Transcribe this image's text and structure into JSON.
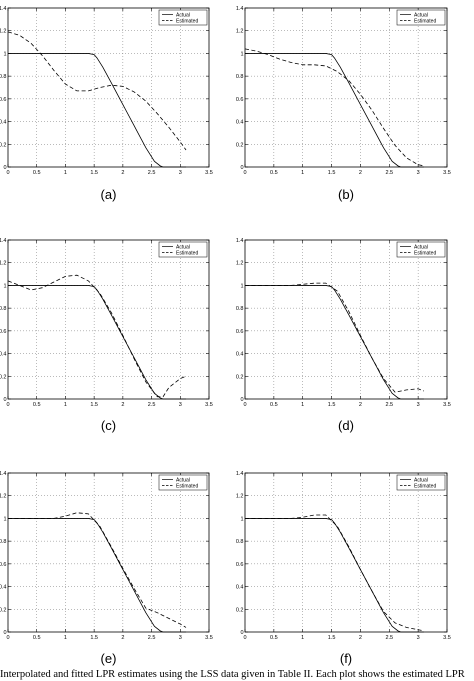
{
  "caption": "Interpolated and fitted LPR estimates using the LSS data given in Table II. Each plot shows the estimated LPR",
  "chart_data": [
    {
      "type": "line",
      "label": "(a)",
      "xlim": [
        0,
        3.5
      ],
      "ylim": [
        0,
        1.4
      ],
      "xticks": [
        "0",
        "0.5",
        "1",
        "1.5",
        "2",
        "2.5",
        "3",
        "3.5"
      ],
      "yticks": [
        "0",
        "0.2",
        "0.4",
        "0.6",
        "0.8",
        "1",
        "1.2",
        "1.4"
      ],
      "grid": true,
      "legend_position": "top-right",
      "series": [
        {
          "name": "Actual",
          "style": "solid",
          "x": [
            0,
            0.5,
            1.0,
            1.4,
            1.5,
            1.55,
            1.65,
            1.8,
            2.0,
            2.2,
            2.4,
            2.55,
            2.65,
            2.7,
            3.0,
            3.1
          ],
          "y": [
            1.0,
            1.0,
            1.0,
            1.0,
            0.99,
            0.96,
            0.88,
            0.74,
            0.55,
            0.36,
            0.17,
            0.05,
            0.01,
            0.0,
            0.0,
            0.0
          ]
        },
        {
          "name": "Estimated",
          "style": "dashed",
          "x": [
            0,
            0.2,
            0.4,
            0.6,
            0.8,
            1.0,
            1.2,
            1.4,
            1.6,
            1.8,
            2.0,
            2.2,
            2.4,
            2.6,
            2.8,
            3.0,
            3.1
          ],
          "y": [
            1.19,
            1.16,
            1.09,
            0.98,
            0.85,
            0.73,
            0.67,
            0.67,
            0.7,
            0.72,
            0.71,
            0.66,
            0.58,
            0.47,
            0.35,
            0.22,
            0.15
          ]
        }
      ]
    },
    {
      "type": "line",
      "label": "(b)",
      "xlim": [
        0,
        3.5
      ],
      "ylim": [
        0,
        1.4
      ],
      "xticks": [
        "0",
        "0.5",
        "1",
        "1.5",
        "2",
        "2.5",
        "3",
        "3.5"
      ],
      "yticks": [
        "0",
        "0.2",
        "0.4",
        "0.6",
        "0.8",
        "1",
        "1.2",
        "1.4"
      ],
      "grid": true,
      "legend_position": "top-right",
      "series": [
        {
          "name": "Actual",
          "style": "solid",
          "x": [
            0,
            0.5,
            1.0,
            1.4,
            1.5,
            1.55,
            1.65,
            1.8,
            2.0,
            2.2,
            2.4,
            2.55,
            2.65,
            2.7,
            3.0,
            3.1
          ],
          "y": [
            1.0,
            1.0,
            1.0,
            1.0,
            0.99,
            0.96,
            0.88,
            0.74,
            0.55,
            0.36,
            0.17,
            0.05,
            0.01,
            0.0,
            0.0,
            0.0
          ]
        },
        {
          "name": "Estimated",
          "style": "dashed",
          "x": [
            0,
            0.2,
            0.4,
            0.6,
            0.8,
            1.0,
            1.2,
            1.4,
            1.6,
            1.8,
            2.0,
            2.2,
            2.4,
            2.6,
            2.8,
            3.0,
            3.1
          ],
          "y": [
            1.04,
            1.02,
            0.99,
            0.95,
            0.92,
            0.9,
            0.9,
            0.89,
            0.84,
            0.76,
            0.64,
            0.5,
            0.34,
            0.19,
            0.08,
            0.02,
            0.01
          ]
        }
      ]
    },
    {
      "type": "line",
      "label": "(c)",
      "xlim": [
        0,
        3.5
      ],
      "ylim": [
        0,
        1.4
      ],
      "xticks": [
        "0",
        "0.5",
        "1",
        "1.5",
        "2",
        "2.5",
        "3",
        "3.5"
      ],
      "yticks": [
        "0",
        "0.2",
        "0.4",
        "0.6",
        "0.8",
        "1",
        "1.2",
        "1.4"
      ],
      "grid": true,
      "legend_position": "top-right",
      "series": [
        {
          "name": "Actual",
          "style": "solid",
          "x": [
            0,
            0.5,
            1.0,
            1.4,
            1.5,
            1.55,
            1.65,
            1.8,
            2.0,
            2.2,
            2.4,
            2.55,
            2.65,
            2.7,
            3.0,
            3.1
          ],
          "y": [
            1.0,
            1.0,
            1.0,
            1.0,
            0.99,
            0.96,
            0.88,
            0.74,
            0.55,
            0.36,
            0.17,
            0.05,
            0.01,
            0.0,
            0.0,
            0.0
          ]
        },
        {
          "name": "Estimated",
          "style": "dashed",
          "x": [
            0,
            0.2,
            0.4,
            0.6,
            0.8,
            1.0,
            1.2,
            1.4,
            1.6,
            1.8,
            2.0,
            2.2,
            2.4,
            2.6,
            2.7,
            2.8,
            3.0,
            3.1
          ],
          "y": [
            1.04,
            1.0,
            0.96,
            0.98,
            1.03,
            1.08,
            1.09,
            1.04,
            0.93,
            0.76,
            0.56,
            0.35,
            0.15,
            0.02,
            0.02,
            0.1,
            0.18,
            0.2
          ]
        }
      ]
    },
    {
      "type": "line",
      "label": "(d)",
      "xlim": [
        0,
        3.5
      ],
      "ylim": [
        0,
        1.4
      ],
      "xticks": [
        "0",
        "0.5",
        "1",
        "1.5",
        "2",
        "2.5",
        "3",
        "3.5"
      ],
      "yticks": [
        "0",
        "0.2",
        "0.4",
        "0.6",
        "0.8",
        "1",
        "1.2",
        "1.4"
      ],
      "grid": true,
      "legend_position": "top-right",
      "series": [
        {
          "name": "Actual",
          "style": "solid",
          "x": [
            0,
            0.5,
            1.0,
            1.4,
            1.5,
            1.55,
            1.65,
            1.8,
            2.0,
            2.2,
            2.4,
            2.55,
            2.65,
            2.7,
            3.0,
            3.1
          ],
          "y": [
            1.0,
            1.0,
            1.0,
            1.0,
            0.99,
            0.96,
            0.88,
            0.74,
            0.55,
            0.36,
            0.17,
            0.05,
            0.01,
            0.0,
            0.0,
            0.0
          ]
        },
        {
          "name": "Estimated",
          "style": "dashed",
          "x": [
            0,
            0.4,
            0.8,
            1.2,
            1.4,
            1.6,
            1.8,
            2.0,
            2.2,
            2.4,
            2.6,
            2.8,
            3.0,
            3.1
          ],
          "y": [
            1.0,
            1.0,
            1.0,
            1.02,
            1.02,
            0.95,
            0.77,
            0.56,
            0.36,
            0.18,
            0.06,
            0.08,
            0.09,
            0.07
          ]
        }
      ]
    },
    {
      "type": "line",
      "label": "(e)",
      "xlim": [
        0,
        3.5
      ],
      "ylim": [
        0,
        1.4
      ],
      "xticks": [
        "0",
        "0.5",
        "1",
        "1.5",
        "2",
        "2.5",
        "3",
        "3.5"
      ],
      "yticks": [
        "0",
        "0.2",
        "0.4",
        "0.6",
        "0.8",
        "1",
        "1.2",
        "1.4"
      ],
      "grid": true,
      "legend_position": "top-right",
      "series": [
        {
          "name": "Actual",
          "style": "solid",
          "x": [
            0,
            0.5,
            1.0,
            1.4,
            1.5,
            1.55,
            1.65,
            1.8,
            2.0,
            2.2,
            2.4,
            2.55,
            2.65,
            2.7,
            3.0,
            3.1
          ],
          "y": [
            1.0,
            1.0,
            1.0,
            1.0,
            0.99,
            0.96,
            0.88,
            0.74,
            0.55,
            0.36,
            0.17,
            0.05,
            0.01,
            0.0,
            0.0,
            0.0
          ]
        },
        {
          "name": "Estimated",
          "style": "dashed",
          "x": [
            0,
            0.4,
            0.8,
            1.0,
            1.2,
            1.4,
            1.6,
            1.8,
            2.0,
            2.2,
            2.4,
            2.6,
            2.8,
            3.0,
            3.1
          ],
          "y": [
            1.0,
            1.0,
            1.0,
            1.02,
            1.05,
            1.04,
            0.93,
            0.75,
            0.56,
            0.38,
            0.21,
            0.17,
            0.12,
            0.07,
            0.04
          ]
        }
      ]
    },
    {
      "type": "line",
      "label": "(f)",
      "xlim": [
        0,
        3.5
      ],
      "ylim": [
        0,
        1.4
      ],
      "xticks": [
        "0",
        "0.5",
        "1",
        "1.5",
        "2",
        "2.5",
        "3",
        "3.5"
      ],
      "yticks": [
        "0",
        "0.2",
        "0.4",
        "0.6",
        "0.8",
        "1",
        "1.2",
        "1.4"
      ],
      "grid": true,
      "legend_position": "top-right",
      "series": [
        {
          "name": "Actual",
          "style": "solid",
          "x": [
            0,
            0.5,
            1.0,
            1.4,
            1.5,
            1.55,
            1.65,
            1.8,
            2.0,
            2.2,
            2.4,
            2.55,
            2.65,
            2.7,
            3.0,
            3.1
          ],
          "y": [
            1.0,
            1.0,
            1.0,
            1.0,
            0.99,
            0.96,
            0.88,
            0.74,
            0.55,
            0.36,
            0.17,
            0.05,
            0.01,
            0.0,
            0.0,
            0.0
          ]
        },
        {
          "name": "Estimated",
          "style": "dashed",
          "x": [
            0,
            0.4,
            0.8,
            1.0,
            1.2,
            1.4,
            1.6,
            1.8,
            2.0,
            2.2,
            2.4,
            2.6,
            2.8,
            3.0,
            3.1
          ],
          "y": [
            1.0,
            1.0,
            1.0,
            1.01,
            1.03,
            1.03,
            0.93,
            0.75,
            0.55,
            0.36,
            0.18,
            0.08,
            0.04,
            0.02,
            0.01
          ]
        }
      ]
    }
  ]
}
